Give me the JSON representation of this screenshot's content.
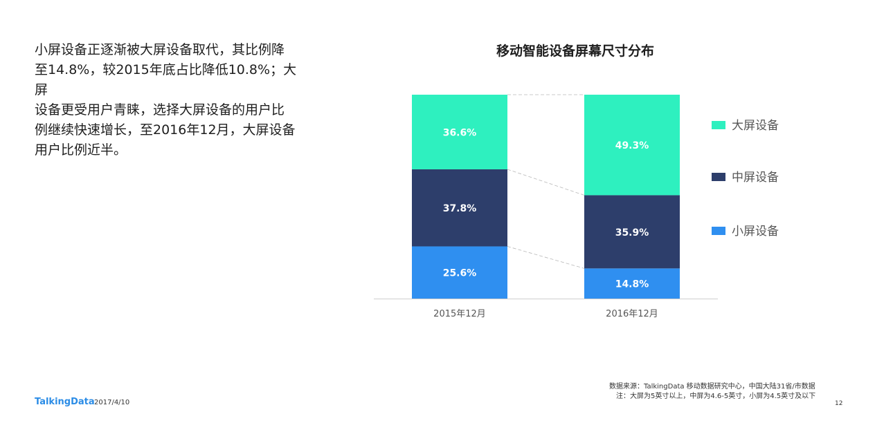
{
  "description": {
    "lines": [
      "小屏设备正逐渐被大屏设备取代，其比例降",
      "至14.8%，较2015年底占比降低10.8%；大屏",
      "设备更受用户青睐，选择大屏设备的用户比",
      "例继续快速增长，至2016年12月，大屏设备",
      "用户比例近半。"
    ]
  },
  "chart_data": {
    "type": "bar",
    "stacked": true,
    "percent_stacked": true,
    "title": "移动智能设备屏幕尺寸分布",
    "categories": [
      "2015年12月",
      "2016年12月"
    ],
    "series": [
      {
        "name": "小屏设备",
        "values": [
          25.6,
          14.8
        ],
        "labels": [
          "25.6%",
          "14.8%"
        ],
        "color": "#2f8ff0"
      },
      {
        "name": "中屏设备",
        "values": [
          37.8,
          35.9
        ],
        "labels": [
          "37.8%",
          "35.9%"
        ],
        "color": "#2d3e6b"
      },
      {
        "name": "大屏设备",
        "values": [
          36.6,
          49.3
        ],
        "labels": [
          "36.6%",
          "49.3%"
        ],
        "color": "#2ef0bf"
      }
    ],
    "legend_order": [
      "大屏设备",
      "中屏设备",
      "小屏设备"
    ],
    "legend_position": "right",
    "ylim": [
      0,
      100
    ],
    "grid": false,
    "connector_lines": true
  },
  "footer": {
    "logo": "TalkingData",
    "date": "2017/4/10",
    "source": "数据来源：TalkingData 移动数据研究中心，中国大陆31省/市数据",
    "note": "注：大屏为5英寸以上，中屏为4.6-5英寸，小屏为4.5英寸及以下",
    "page": "12"
  }
}
